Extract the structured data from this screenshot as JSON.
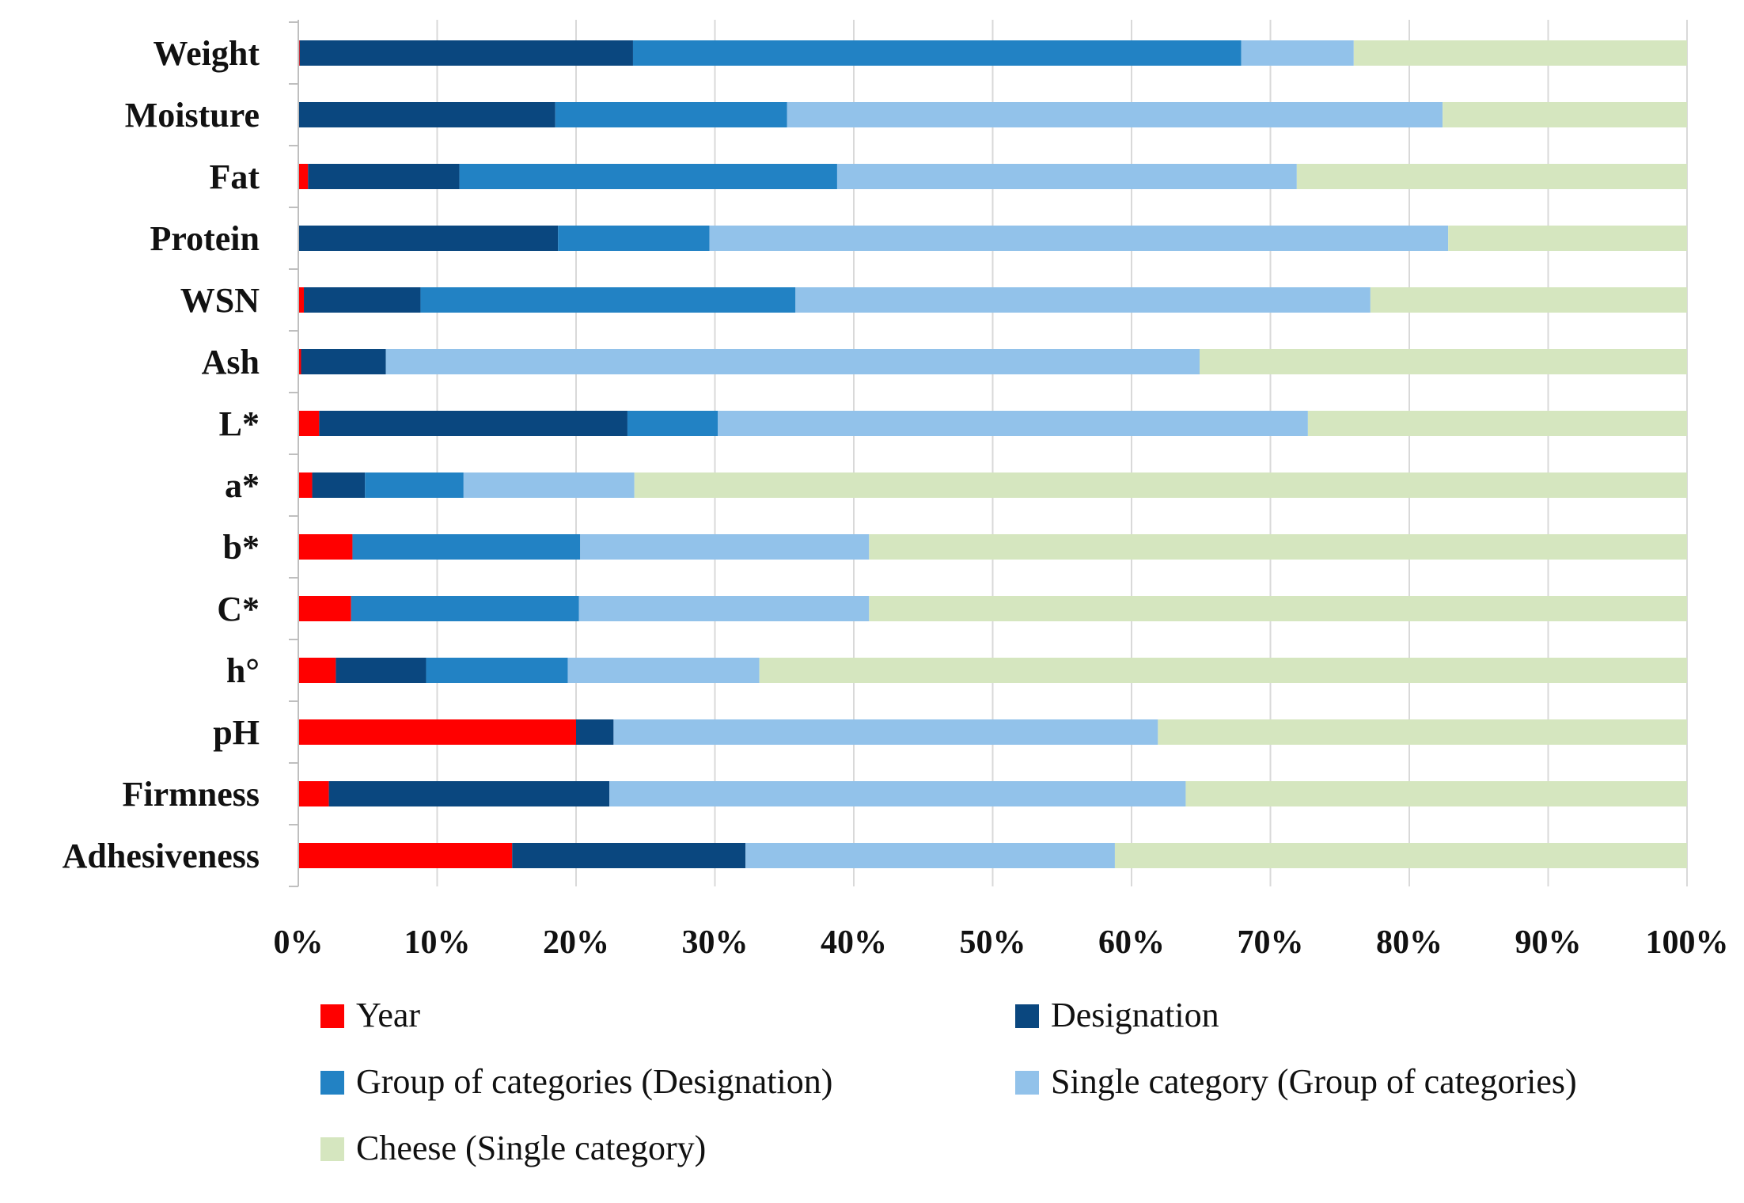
{
  "chart_data": {
    "type": "bar",
    "orientation": "horizontal",
    "stacked": true,
    "normalized": true,
    "title": "",
    "xlabel": "",
    "ylabel": "",
    "xlim": [
      0,
      100
    ],
    "grid": "vertical",
    "legend_position": "bottom",
    "categories": [
      "Weight",
      "Moisture",
      "Fat",
      "Protein",
      "WSN",
      "Ash",
      "L*",
      "a*",
      "b*",
      "C*",
      "h°",
      "pH",
      "Firmness",
      "Adhesiveness"
    ],
    "x_tick_labels": [
      "0%",
      "10%",
      "20%",
      "30%",
      "40%",
      "50%",
      "60%",
      "70%",
      "80%",
      "90%",
      "100%"
    ],
    "series": [
      {
        "name": "Year",
        "color": "#ff0000",
        "values": [
          0.1,
          0.0,
          0.7,
          0.0,
          0.4,
          0.2,
          1.5,
          1.0,
          3.9,
          3.8,
          2.7,
          20.0,
          2.2,
          15.4
        ]
      },
      {
        "name": "Designation",
        "color": "#0a477f",
        "values": [
          24.0,
          18.5,
          10.9,
          18.7,
          8.4,
          6.1,
          22.2,
          3.8,
          0.0,
          0.0,
          6.5,
          2.7,
          20.2,
          16.8
        ]
      },
      {
        "name": "Group of categories (Designation)",
        "color": "#2282c4",
        "values": [
          43.8,
          16.7,
          27.2,
          10.9,
          27.0,
          0.0,
          6.5,
          7.1,
          16.4,
          16.4,
          10.2,
          0.0,
          0.0,
          0.0
        ]
      },
      {
        "name": "Single category (Group of categories)",
        "color": "#92c2ea",
        "values": [
          8.1,
          47.2,
          33.1,
          53.2,
          41.4,
          58.6,
          42.5,
          12.3,
          20.8,
          20.9,
          13.8,
          39.2,
          41.5,
          26.6
        ]
      },
      {
        "name": "Cheese (Single category)",
        "color": "#d5e6bf",
        "values": [
          24.0,
          17.6,
          28.1,
          17.2,
          22.8,
          35.1,
          27.3,
          75.8,
          58.9,
          58.9,
          66.8,
          38.1,
          36.1,
          41.2
        ]
      }
    ]
  }
}
